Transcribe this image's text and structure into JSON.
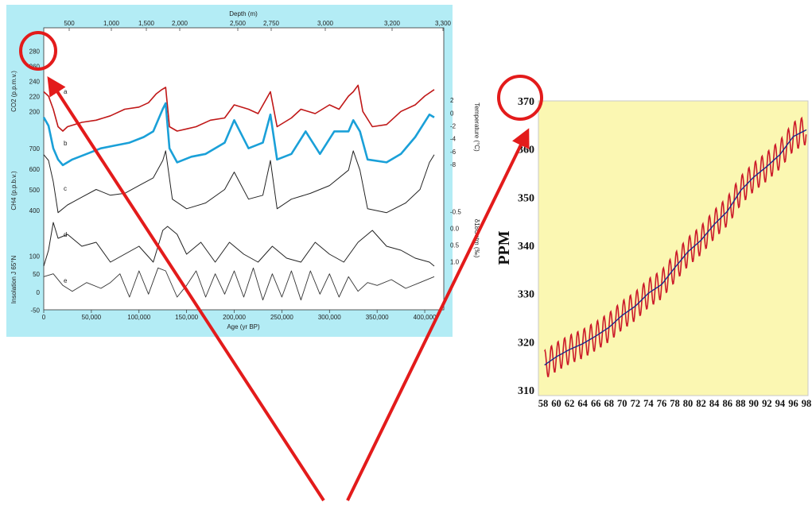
{
  "chart_data": [
    {
      "type": "line",
      "x_axis": {
        "label": "Age (yr BP)",
        "range": [
          0,
          420000
        ],
        "ticks": [
          "0",
          "50,000",
          "100,000",
          "150,000",
          "200,000",
          "250,000",
          "300,000",
          "350,000",
          "400,000"
        ]
      },
      "top_axis": {
        "label": "Depth (m)",
        "ticks": [
          "500",
          "1,000",
          "1,500",
          "2,000",
          "2,500",
          "2,750",
          "3,000",
          "3,200",
          "3,300"
        ]
      },
      "left_axes": [
        {
          "label": "CO2 (p.p.m.v.)",
          "ticks": [
            "280",
            "260",
            "240",
            "220",
            "200"
          ]
        },
        {
          "label": "CH4 (p.p.b.v.)",
          "ticks": [
            "700",
            "600",
            "500",
            "400"
          ]
        },
        {
          "label": "Insolation J 65°N",
          "ticks": [
            "100",
            "50",
            "0",
            "-50"
          ]
        }
      ],
      "right_axes": [
        {
          "label": "Temperature (°C)",
          "ticks": [
            "2",
            "0",
            "-2",
            "-4",
            "-6",
            "-8"
          ]
        },
        {
          "label": "δ18Oatm (‰)",
          "ticks": [
            "-0.5",
            "0.0",
            "0.5",
            "1.0"
          ]
        }
      ],
      "series": [
        {
          "letter": "a",
          "color": "#c01818",
          "x": [
            0,
            5000,
            10000,
            15000,
            20000,
            25000,
            40000,
            55000,
            70000,
            85000,
            100000,
            110000,
            118000,
            124000,
            128000,
            132000,
            140000,
            150000,
            160000,
            175000,
            190000,
            200000,
            215000,
            225000,
            238000,
            245000,
            260000,
            270000,
            285000,
            300000,
            310000,
            320000,
            325000,
            330000,
            335000,
            345000,
            360000,
            375000,
            390000,
            400000,
            410000
          ],
          "values": [
            280,
            270,
            240,
            200,
            190,
            200,
            210,
            215,
            225,
            240,
            245,
            255,
            275,
            285,
            290,
            200,
            190,
            195,
            200,
            215,
            220,
            250,
            240,
            230,
            280,
            200,
            220,
            240,
            230,
            250,
            240,
            270,
            280,
            295,
            235,
            200,
            205,
            235,
            250,
            270,
            285
          ]
        },
        {
          "letter": "b",
          "color": "#1aa0d8",
          "x": [
            0,
            5000,
            10000,
            15000,
            20000,
            30000,
            45000,
            60000,
            75000,
            90000,
            105000,
            115000,
            125000,
            128000,
            132000,
            140000,
            155000,
            170000,
            190000,
            200000,
            215000,
            230000,
            238000,
            245000,
            260000,
            275000,
            290000,
            305000,
            320000,
            325000,
            332000,
            340000,
            360000,
            375000,
            390000,
            405000,
            410000
          ],
          "values": [
            0.5,
            -1,
            -5,
            -7,
            -8,
            -7,
            -6,
            -5,
            -4.5,
            -4,
            -3,
            -2,
            2,
            3,
            -5,
            -7.5,
            -6.5,
            -6,
            -4,
            0,
            -5,
            -4,
            1,
            -7,
            -6,
            -2,
            -6,
            -2,
            -2,
            0,
            -2,
            -7,
            -7.5,
            -6,
            -3,
            1,
            0.5
          ]
        },
        {
          "letter": "c",
          "color": "#222222",
          "x": [
            0,
            5000,
            10000,
            15000,
            25000,
            40000,
            55000,
            70000,
            85000,
            100000,
            115000,
            125000,
            128000,
            135000,
            150000,
            170000,
            190000,
            200000,
            215000,
            230000,
            238000,
            245000,
            260000,
            280000,
            300000,
            320000,
            325000,
            332000,
            340000,
            360000,
            380000,
            395000,
            405000,
            410000
          ],
          "values": [
            680,
            650,
            540,
            380,
            420,
            460,
            500,
            470,
            480,
            520,
            560,
            650,
            700,
            450,
            400,
            430,
            500,
            590,
            450,
            470,
            650,
            400,
            450,
            480,
            520,
            600,
            700,
            600,
            400,
            380,
            430,
            500,
            640,
            680
          ]
        }
      ],
      "series_d": {
        "letter": "d",
        "color": "#222222",
        "x": [
          0,
          5000,
          10000,
          15000,
          25000,
          40000,
          55000,
          70000,
          85000,
          100000,
          115000,
          125000,
          130000,
          140000,
          150000,
          165000,
          180000,
          195000,
          210000,
          225000,
          240000,
          255000,
          270000,
          285000,
          300000,
          315000,
          330000,
          345000,
          360000,
          375000,
          390000,
          405000,
          410000
        ],
        "values": [
          -0.1,
          0.3,
          1.0,
          0.6,
          0.7,
          0.4,
          0.5,
          0.0,
          0.2,
          0.4,
          0.0,
          0.8,
          0.9,
          0.7,
          0.2,
          0.5,
          0.0,
          0.5,
          0.2,
          0.0,
          0.4,
          0.1,
          0.0,
          0.5,
          0.2,
          0.0,
          0.5,
          0.8,
          0.4,
          0.3,
          0.1,
          0.0,
          -0.1
        ]
      },
      "series_e": {
        "letter": "e",
        "color": "#333333",
        "x": [
          0,
          10000,
          20000,
          30000,
          45000,
          60000,
          70000,
          80000,
          90000,
          100000,
          110000,
          120000,
          128000,
          140000,
          150000,
          160000,
          170000,
          180000,
          190000,
          200000,
          210000,
          220000,
          230000,
          240000,
          250000,
          260000,
          270000,
          280000,
          290000,
          300000,
          310000,
          320000,
          330000,
          340000,
          350000,
          365000,
          380000,
          395000,
          410000
        ],
        "values": [
          40,
          50,
          10,
          -10,
          20,
          0,
          20,
          50,
          -30,
          60,
          -20,
          70,
          60,
          -30,
          10,
          60,
          -30,
          50,
          -20,
          60,
          -30,
          70,
          -40,
          50,
          -30,
          60,
          -40,
          60,
          -20,
          50,
          -30,
          40,
          -10,
          20,
          10,
          30,
          0,
          20,
          40
        ]
      },
      "series_labels": [
        "a",
        "b",
        "c",
        "d",
        "e"
      ]
    },
    {
      "type": "line",
      "ylabel": "PPM",
      "ylim": [
        310,
        370
      ],
      "y_ticks": [
        "370",
        "360",
        "350",
        "340",
        "330",
        "320",
        "310"
      ],
      "x_ticks": [
        "58",
        "60",
        "62",
        "64",
        "66",
        "68",
        "70",
        "72",
        "74",
        "76",
        "78",
        "80",
        "82",
        "84",
        "86",
        "88",
        "90",
        "92",
        "94",
        "96",
        "98"
      ],
      "series": [
        {
          "color": "#cc1a2a",
          "kind": "monthly seasonal cycle"
        },
        {
          "color": "#1a2a8c",
          "kind": "trend",
          "x": [
            1958,
            1960,
            1962,
            1964,
            1966,
            1968,
            1970,
            1972,
            1974,
            1976,
            1978,
            1980,
            1982,
            1984,
            1986,
            1988,
            1990,
            1992,
            1994,
            1996,
            1998
          ],
          "values": [
            315.0,
            316.9,
            318.4,
            319.6,
            321.2,
            323.0,
            325.5,
            327.4,
            330.1,
            331.9,
            335.4,
            338.7,
            341.1,
            344.4,
            347.1,
            351.4,
            354.2,
            356.4,
            358.9,
            362.6,
            364.0
          ]
        }
      ],
      "seasonal_amplitude": 3.0
    }
  ],
  "colors": {
    "vostok_panel": "#b3ecf5",
    "ppm_panel": "#fbf7b2",
    "annotation": "#e31b1b"
  },
  "icons": [
    "red-annotation-circle",
    "red-annotation-arrow"
  ]
}
